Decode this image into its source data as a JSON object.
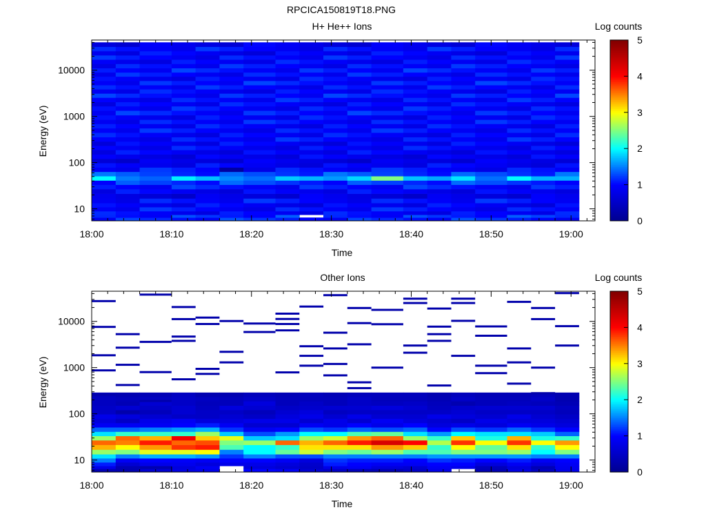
{
  "figure": {
    "title": "RPCICA150819T18.PNG"
  },
  "colors": {
    "colormap": [
      "#00008f",
      "#0000ff",
      "#00ffff",
      "#ffff00",
      "#ff0000",
      "#800000"
    ],
    "missing": "#ffffff",
    "axes": "#000000"
  },
  "chart_data": [
    {
      "type": "heatmap",
      "title": "H+ He++ Ions",
      "xlabel": "Time",
      "ylabel": "Energy (eV)",
      "yscale": "log",
      "ylim": [
        5.5,
        45000
      ],
      "xlim": [
        "18:00",
        "19:03"
      ],
      "x_ticks": [
        "18:00",
        "18:10",
        "18:20",
        "18:30",
        "18:40",
        "18:50",
        "19:00"
      ],
      "y_ticks": [
        {
          "value": 10,
          "label": "10"
        },
        {
          "value": 100,
          "label": "100"
        },
        {
          "value": 1000,
          "label": "1000"
        },
        {
          "value": 10000,
          "label": "10000"
        }
      ],
      "time_bins": [
        "18:00",
        "18:03",
        "18:06",
        "18:10",
        "18:13",
        "18:16",
        "18:19",
        "18:23",
        "18:26",
        "18:29",
        "18:32",
        "18:35",
        "18:39",
        "18:42",
        "18:45",
        "18:48",
        "18:52",
        "18:55",
        "18:58"
      ],
      "time_end": "19:01",
      "colorbar": {
        "label": "Log counts",
        "min": 0,
        "max": 5,
        "ticks": [
          "0",
          "1",
          "2",
          "3",
          "4",
          "5"
        ]
      },
      "profile_energy_eV": [
        6,
        7,
        8,
        10,
        12,
        15,
        19,
        24,
        30,
        37,
        46,
        57,
        71,
        88,
        110,
        135,
        170,
        210,
        260,
        320,
        400,
        500,
        620,
        770,
        950,
        1200,
        1500,
        1850,
        2300,
        2850,
        3500,
        4300,
        5300,
        6600,
        8100,
        10000,
        12400,
        15300,
        19000,
        23400,
        29000,
        36000
      ],
      "profile_log_counts": [
        1.1,
        1.15,
        0.95,
        1.0,
        0.9,
        1.0,
        0.75,
        0.9,
        1.05,
        1.2,
        1.6,
        1.25,
        1.0,
        0.9,
        0.75,
        0.85,
        0.9,
        0.95,
        0.9,
        1.0,
        0.95,
        1.0,
        0.95,
        1.0,
        0.95,
        1.05,
        1.0,
        0.95,
        1.0,
        1.05,
        0.95,
        1.0,
        1.05,
        0.95,
        1.0,
        1.05,
        1.0,
        0.95,
        1.0,
        0.9,
        1.0,
        0.8
      ],
      "bin_enhancement": [
        {
          "time": "18:00",
          "energy_eV": 46,
          "log_counts": 2.0
        },
        {
          "time": "18:10",
          "energy_eV": 46,
          "log_counts": 1.95
        },
        {
          "time": "18:13",
          "energy_eV": 46,
          "log_counts": 1.75
        },
        {
          "time": "18:23",
          "energy_eV": 46,
          "log_counts": 1.8
        },
        {
          "time": "18:32",
          "energy_eV": 46,
          "log_counts": 1.85
        },
        {
          "time": "18:35",
          "energy_eV": 46,
          "log_counts": 2.5
        },
        {
          "time": "18:45",
          "energy_eV": 46,
          "log_counts": 1.9
        },
        {
          "time": "18:52",
          "energy_eV": 46,
          "log_counts": 2.0
        },
        {
          "time": "18:58",
          "energy_eV": 46,
          "log_counts": 1.7
        },
        {
          "time": "18:16",
          "energy_eV": 71,
          "log_counts": 0.15
        },
        {
          "time": "18:26",
          "energy_eV": 6.5,
          "log_counts": null
        }
      ]
    },
    {
      "type": "heatmap",
      "title": "Other Ions",
      "xlabel": "Time",
      "ylabel": "Energy (eV)",
      "yscale": "log",
      "ylim": [
        5.5,
        45000
      ],
      "xlim": [
        "18:00",
        "19:03"
      ],
      "x_ticks": [
        "18:00",
        "18:10",
        "18:20",
        "18:30",
        "18:40",
        "18:50",
        "19:00"
      ],
      "y_ticks": [
        {
          "value": 10,
          "label": "10"
        },
        {
          "value": 100,
          "label": "100"
        },
        {
          "value": 1000,
          "label": "1000"
        },
        {
          "value": 10000,
          "label": "10000"
        }
      ],
      "time_bins": [
        "18:00",
        "18:03",
        "18:06",
        "18:10",
        "18:13",
        "18:16",
        "18:19",
        "18:23",
        "18:26",
        "18:29",
        "18:32",
        "18:35",
        "18:39",
        "18:42",
        "18:45",
        "18:48",
        "18:52",
        "18:55",
        "18:58"
      ],
      "time_end": "19:01",
      "colorbar": {
        "label": "Log counts",
        "min": 0,
        "max": 5,
        "ticks": [
          "0",
          "1",
          "2",
          "3",
          "4",
          "5"
        ]
      },
      "dense_band_energy_eV": [
        6,
        7,
        8,
        10,
        12,
        15,
        19,
        24,
        30,
        37,
        46,
        57,
        71,
        88,
        110,
        135,
        170,
        210,
        260
      ],
      "dense_band_log_counts": [
        [
          0.35,
          0.8,
          1.1,
          1.5,
          1.9,
          2.6,
          3.3,
          3.6,
          2.6,
          1.9,
          1.4,
          0.9,
          0.7,
          0.8,
          0.5,
          0.5,
          0.45,
          0.45,
          0.4
        ],
        [
          0.3,
          0.35,
          0.6,
          0.9,
          1.5,
          2.5,
          3.0,
          3.5,
          3.6,
          2.2,
          1.4,
          0.9,
          0.5,
          0.7,
          0.3,
          0.6,
          0.35,
          0.4,
          0.3
        ],
        [
          0.6,
          0.3,
          0.8,
          1.0,
          1.7,
          2.9,
          3.4,
          3.9,
          3.3,
          2.2,
          1.5,
          0.9,
          0.8,
          0.6,
          0.4,
          0.5,
          0.6,
          0.45,
          0.35
        ],
        [
          0.75,
          0.7,
          0.85,
          0.95,
          1.7,
          2.9,
          3.8,
          3.6,
          4.1,
          2.2,
          1.6,
          1.0,
          0.9,
          0.5,
          0.6,
          0.6,
          0.5,
          0.5,
          0.45
        ],
        [
          0.8,
          0.9,
          0.7,
          0.9,
          1.6,
          3.0,
          3.9,
          3.7,
          3.2,
          2.6,
          1.7,
          1.1,
          0.7,
          0.5,
          0.5,
          0.45,
          0.4,
          0.45,
          0.3
        ],
        [
          null,
          null,
          0.8,
          1.0,
          1.2,
          1.5,
          2.3,
          2.5,
          2.9,
          1.8,
          1.2,
          0.9,
          0.7,
          0.6,
          0.5,
          0.7,
          0.4,
          0.4,
          0.3
        ],
        [
          1.0,
          0.7,
          0.8,
          1.0,
          1.5,
          2.0,
          2.0,
          2.6,
          1.8,
          1.3,
          0.9,
          0.6,
          0.8,
          0.5,
          0.4,
          0.6,
          0.7,
          0.5,
          0.4
        ],
        [
          0.9,
          0.6,
          0.7,
          0.9,
          1.3,
          2.4,
          2.2,
          3.6,
          1.9,
          1.6,
          1.0,
          0.6,
          0.8,
          0.7,
          0.6,
          0.5,
          0.4,
          0.4,
          0.35
        ],
        [
          0.6,
          0.5,
          0.55,
          0.7,
          1.3,
          2.8,
          3.1,
          3.3,
          2.6,
          2.0,
          1.3,
          0.9,
          0.6,
          0.8,
          0.7,
          0.55,
          0.5,
          0.4,
          0.4
        ],
        [
          0.5,
          0.8,
          1.1,
          1.2,
          1.5,
          2.5,
          3.1,
          3.6,
          2.8,
          2.0,
          1.2,
          0.8,
          0.8,
          0.6,
          0.45,
          0.6,
          0.4,
          0.4,
          0.35
        ],
        [
          0.4,
          0.9,
          1.0,
          1.1,
          1.5,
          2.4,
          3.1,
          3.9,
          3.4,
          2.3,
          1.4,
          1.0,
          0.6,
          0.8,
          0.5,
          0.6,
          0.5,
          0.5,
          0.4
        ],
        [
          0.35,
          0.7,
          0.9,
          1.1,
          1.5,
          2.6,
          3.4,
          4.3,
          3.6,
          2.4,
          1.3,
          0.8,
          0.9,
          0.6,
          0.5,
          0.7,
          0.45,
          0.4,
          0.4
        ],
        [
          0.5,
          0.6,
          0.9,
          1.0,
          1.5,
          2.3,
          3.2,
          4.0,
          2.6,
          1.9,
          1.4,
          1.0,
          0.7,
          0.6,
          0.5,
          0.6,
          0.5,
          0.4,
          0.4
        ],
        [
          0.8,
          0.9,
          1.0,
          1.2,
          1.6,
          2.3,
          2.2,
          2.7,
          2.2,
          1.6,
          1.0,
          0.7,
          0.6,
          0.8,
          0.5,
          0.45,
          0.4,
          0.35,
          0.3
        ],
        [
          null,
          0.8,
          1.0,
          1.1,
          1.6,
          2.5,
          3.0,
          3.8,
          3.2,
          2.0,
          1.3,
          0.8,
          0.5,
          0.7,
          0.6,
          0.55,
          0.3,
          0.5,
          0.4
        ],
        [
          0.35,
          0.4,
          0.7,
          1.0,
          1.6,
          2.5,
          2.4,
          3.0,
          2.1,
          1.9,
          1.2,
          0.7,
          0.8,
          0.6,
          0.5,
          0.6,
          0.4,
          0.4,
          0.35
        ],
        [
          0.75,
          0.7,
          0.9,
          1.1,
          1.6,
          2.6,
          3.1,
          3.8,
          3.3,
          1.9,
          1.4,
          0.9,
          0.7,
          0.8,
          0.5,
          0.6,
          0.45,
          0.4,
          0.35
        ],
        [
          0.45,
          0.35,
          0.7,
          0.9,
          1.5,
          2.0,
          2.2,
          3.0,
          2.1,
          1.8,
          1.2,
          0.8,
          0.7,
          0.6,
          0.5,
          0.6,
          0.4,
          0.5,
          0.4
        ],
        [
          0.8,
          0.85,
          0.9,
          1.0,
          1.5,
          2.5,
          3.0,
          3.4,
          2.2,
          1.4,
          1.0,
          0.7,
          0.6,
          0.5,
          0.4,
          0.45,
          0.35,
          0.3,
          0.3
        ]
      ],
      "sparse_counts_energy_eV": [
        [
          "18:00",
          [
            260,
            870,
            1850,
            7600,
            27500
          ]
        ],
        [
          "18:03",
          [
            110,
            420,
            1150,
            2700,
            5300
          ]
        ],
        [
          "18:06",
          [
            190,
            800,
            3600,
            38000
          ]
        ],
        [
          "18:10",
          [
            560,
            3800,
            4700,
            11200,
            20500
          ]
        ],
        [
          "18:13",
          [
            730,
            940,
            8800,
            12100
          ]
        ],
        [
          "18:16",
          [
            1300,
            2200,
            10200
          ]
        ],
        [
          "18:19",
          [
            5900,
            9000
          ]
        ],
        [
          "18:23",
          [
            790,
            8800,
            11300,
            14700,
            6400
          ]
        ],
        [
          "18:26",
          [
            1100,
            1800,
            2900,
            21000
          ]
        ],
        [
          "18:29",
          [
            680,
            1200,
            2600,
            5700,
            37000
          ]
        ],
        [
          "18:32",
          [
            360,
            480,
            3200,
            19500,
            9200
          ]
        ],
        [
          "18:35",
          [
            1000,
            8700,
            17800
          ]
        ],
        [
          "18:39",
          [
            2100,
            3000,
            25000,
            31000
          ]
        ],
        [
          "18:42",
          [
            410,
            3800,
            5300,
            7700,
            19000
          ]
        ],
        [
          "18:45",
          [
            1800,
            10300,
            25000,
            31000
          ]
        ],
        [
          "18:48",
          [
            760,
            1100,
            4900,
            7800
          ]
        ],
        [
          "18:52",
          [
            450,
            1300,
            2600,
            26500
          ]
        ],
        [
          "18:55",
          [
            280,
            1000,
            11200,
            19500
          ]
        ],
        [
          "18:58",
          [
            3000,
            7900,
            41000
          ]
        ]
      ]
    }
  ]
}
